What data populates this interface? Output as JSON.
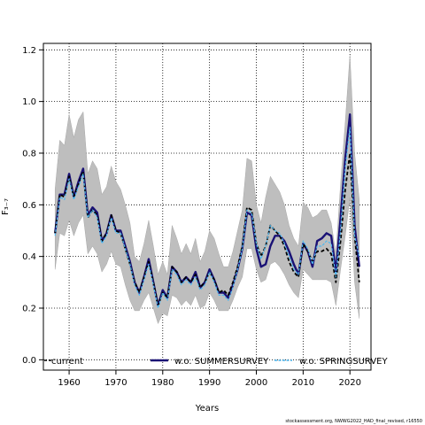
{
  "chart_data": {
    "type": "line",
    "ylabel": "F₃₋₇",
    "xlabel": "Years",
    "xlim": [
      1954.5,
      2024.5
    ],
    "ylim": [
      -0.04,
      1.225
    ],
    "xticks": [
      1960,
      1970,
      1980,
      1990,
      2000,
      2010,
      2020
    ],
    "yticks": [
      0.0,
      0.2,
      0.4,
      0.6,
      0.8,
      1.0,
      1.2
    ],
    "grid": true,
    "legend_position": "bottom",
    "x": [
      1957,
      1958,
      1959,
      1960,
      1961,
      1962,
      1963,
      1964,
      1965,
      1966,
      1967,
      1968,
      1969,
      1970,
      1971,
      1972,
      1973,
      1974,
      1975,
      1976,
      1977,
      1978,
      1979,
      1980,
      1981,
      1982,
      1983,
      1984,
      1985,
      1986,
      1987,
      1988,
      1989,
      1990,
      1991,
      1992,
      1993,
      1994,
      1995,
      1996,
      1997,
      1998,
      1999,
      2000,
      2001,
      2002,
      2003,
      2004,
      2005,
      2006,
      2007,
      2008,
      2009,
      2010,
      2011,
      2012,
      2013,
      2014,
      2015,
      2016,
      2017,
      2018,
      2019,
      2020,
      2021,
      2022
    ],
    "band": {
      "upper": [
        0.66,
        0.85,
        0.83,
        0.95,
        0.86,
        0.93,
        0.96,
        0.72,
        0.77,
        0.74,
        0.64,
        0.67,
        0.75,
        0.69,
        0.66,
        0.6,
        0.53,
        0.4,
        0.38,
        0.45,
        0.54,
        0.44,
        0.33,
        0.38,
        0.33,
        0.52,
        0.47,
        0.41,
        0.45,
        0.41,
        0.47,
        0.38,
        0.42,
        0.5,
        0.47,
        0.41,
        0.36,
        0.36,
        0.42,
        0.5,
        0.58,
        0.78,
        0.77,
        0.6,
        0.53,
        0.63,
        0.71,
        0.68,
        0.65,
        0.6,
        0.52,
        0.47,
        0.44,
        0.61,
        0.59,
        0.55,
        0.56,
        0.58,
        0.58,
        0.53,
        0.41,
        0.68,
        0.92,
        1.18,
        0.8,
        0.62
      ],
      "lower": [
        0.35,
        0.49,
        0.48,
        0.54,
        0.48,
        0.53,
        0.56,
        0.41,
        0.44,
        0.41,
        0.34,
        0.37,
        0.42,
        0.37,
        0.36,
        0.29,
        0.23,
        0.19,
        0.19,
        0.23,
        0.26,
        0.2,
        0.14,
        0.18,
        0.17,
        0.25,
        0.24,
        0.21,
        0.23,
        0.21,
        0.25,
        0.2,
        0.21,
        0.26,
        0.23,
        0.19,
        0.19,
        0.19,
        0.23,
        0.28,
        0.32,
        0.43,
        0.43,
        0.35,
        0.3,
        0.31,
        0.37,
        0.38,
        0.36,
        0.33,
        0.29,
        0.26,
        0.24,
        0.35,
        0.33,
        0.31,
        0.31,
        0.31,
        0.31,
        0.3,
        0.21,
        0.35,
        0.48,
        0.63,
        0.3,
        0.16
      ]
    },
    "series": [
      {
        "name": "current",
        "color": "#000000",
        "style": "dashed",
        "values": [
          0.49,
          0.64,
          0.63,
          0.71,
          0.63,
          0.68,
          0.73,
          0.55,
          0.58,
          0.56,
          0.46,
          0.49,
          0.56,
          0.5,
          0.49,
          0.43,
          0.37,
          0.3,
          0.26,
          0.32,
          0.38,
          0.3,
          0.21,
          0.26,
          0.24,
          0.36,
          0.34,
          0.3,
          0.32,
          0.3,
          0.33,
          0.28,
          0.3,
          0.34,
          0.31,
          0.26,
          0.27,
          0.25,
          0.3,
          0.36,
          0.44,
          0.59,
          0.58,
          0.45,
          0.4,
          0.44,
          0.52,
          0.5,
          0.48,
          0.44,
          0.38,
          0.34,
          0.32,
          0.45,
          0.42,
          0.38,
          0.42,
          0.42,
          0.43,
          0.41,
          0.3,
          0.46,
          0.66,
          0.8,
          0.48,
          0.3
        ]
      },
      {
        "name": "w.o. SUMMERSURVEY",
        "color": "#1a1175",
        "style": "solid",
        "values": [
          0.49,
          0.64,
          0.64,
          0.72,
          0.63,
          0.69,
          0.74,
          0.56,
          0.59,
          0.57,
          0.46,
          0.49,
          0.56,
          0.5,
          0.5,
          0.44,
          0.38,
          0.3,
          0.26,
          0.32,
          0.39,
          0.3,
          0.21,
          0.27,
          0.24,
          0.36,
          0.34,
          0.3,
          0.32,
          0.3,
          0.34,
          0.28,
          0.3,
          0.35,
          0.31,
          0.26,
          0.26,
          0.24,
          0.29,
          0.35,
          0.43,
          0.57,
          0.56,
          0.43,
          0.36,
          0.37,
          0.44,
          0.48,
          0.48,
          0.46,
          0.42,
          0.37,
          0.33,
          0.45,
          0.42,
          0.36,
          0.46,
          0.47,
          0.49,
          0.48,
          0.34,
          0.55,
          0.78,
          0.95,
          0.52,
          0.36
        ]
      },
      {
        "name": "w.o. SPRINGSURVEY",
        "color": "#4fb8f0",
        "style": "dashed",
        "values": [
          0.48,
          0.63,
          0.62,
          0.7,
          0.62,
          0.67,
          0.72,
          0.55,
          0.58,
          0.55,
          0.45,
          0.48,
          0.55,
          0.49,
          0.49,
          0.43,
          0.37,
          0.29,
          0.25,
          0.31,
          0.37,
          0.29,
          0.2,
          0.26,
          0.23,
          0.35,
          0.33,
          0.29,
          0.31,
          0.29,
          0.32,
          0.27,
          0.29,
          0.34,
          0.3,
          0.25,
          0.25,
          0.23,
          0.28,
          0.35,
          0.43,
          0.58,
          0.57,
          0.45,
          0.39,
          0.44,
          0.52,
          0.5,
          0.49,
          0.45,
          0.4,
          0.35,
          0.33,
          0.46,
          0.43,
          0.37,
          0.44,
          0.44,
          0.46,
          0.45,
          0.32,
          0.5,
          0.74,
          0.9,
          0.48,
          0.4
        ]
      }
    ]
  },
  "footer": "stockassessment.org, NWWG2022_HAD_final_revised, r16550"
}
